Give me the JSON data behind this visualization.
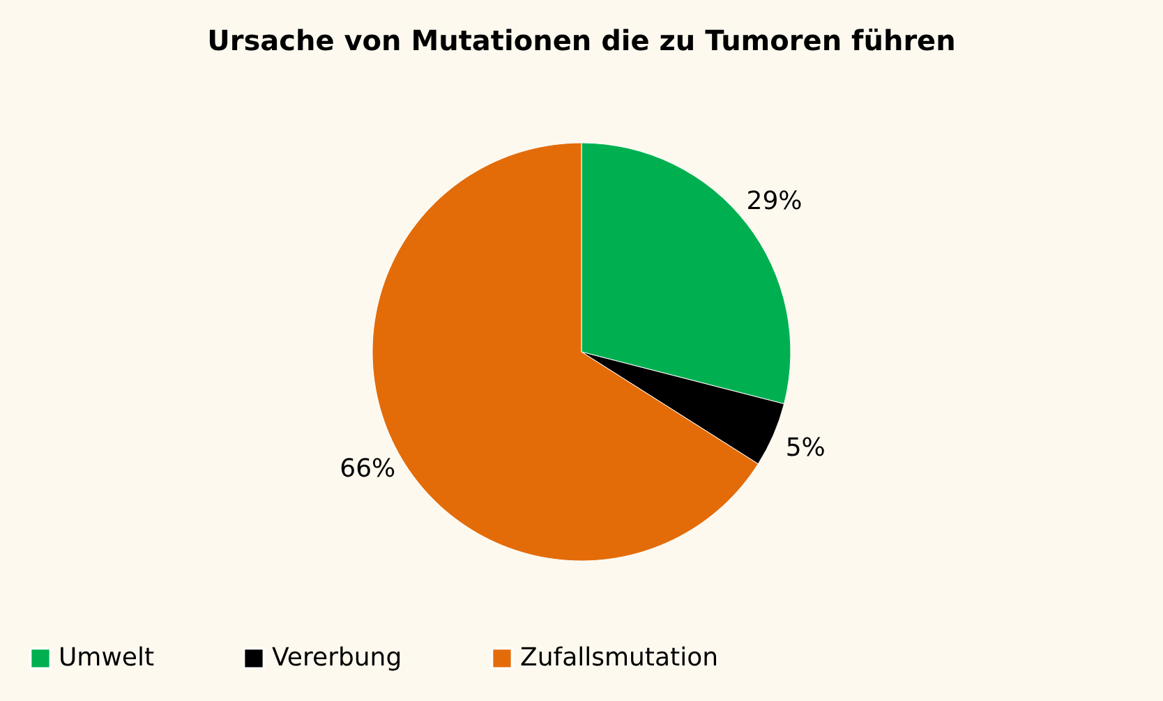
{
  "chart_data": {
    "type": "pie",
    "title": "Ursache von Mutationen die zu Tumoren führen",
    "categories": [
      "Umwelt",
      "Vererbung",
      "Zufallsmutation"
    ],
    "values": [
      29,
      5,
      66
    ],
    "colors": [
      "#00b050",
      "#000000",
      "#e36c09"
    ],
    "value_labels": [
      "29%",
      "5%",
      "66%"
    ],
    "legend": "bottom"
  }
}
